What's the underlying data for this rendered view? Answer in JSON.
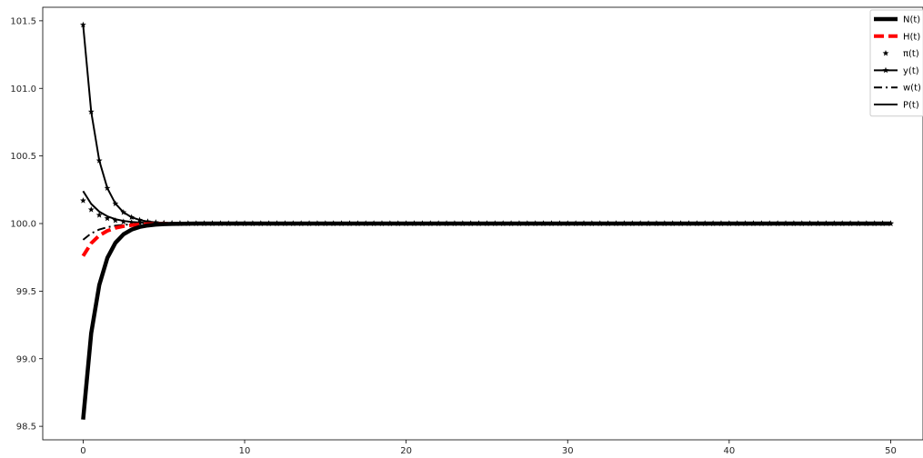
{
  "chart_data": {
    "type": "line",
    "title": "",
    "xlabel": "",
    "ylabel": "",
    "xlim": [
      -2.5,
      52.0
    ],
    "ylim": [
      98.4,
      101.6
    ],
    "grid": false,
    "legend_position": "top-right",
    "x_ticks": [
      0,
      10,
      20,
      30,
      40,
      50
    ],
    "x_tick_labels": [
      "0",
      "10",
      "20",
      "30",
      "40",
      "50"
    ],
    "y_ticks": [
      98.5,
      99.0,
      99.5,
      100.0,
      100.5,
      101.0,
      101.5
    ],
    "y_tick_labels": [
      "98.5",
      "99.0",
      "99.5",
      "100.0",
      "100.5",
      "101.0",
      "101.5"
    ],
    "x_start": 0,
    "x_end": 50,
    "x_step": 0.5,
    "series": [
      {
        "name": "N(t)",
        "style": "thick-solid",
        "color": "#000000",
        "initial_value": 98.55,
        "steady_value": 100.0,
        "decay_per_unit_t": 1.16
      },
      {
        "name": "H(t)",
        "style": "dashed",
        "color": "#ff0000",
        "initial_value": 99.76,
        "steady_value": 100.0,
        "decay_per_unit_t": 1.0
      },
      {
        "name": "π(t)",
        "style": "star-markers",
        "color": "#000000",
        "initial_value": 100.17,
        "steady_value": 100.0,
        "decay_per_unit_t": 1.0
      },
      {
        "name": "y(t)",
        "style": "solid-star-markers",
        "color": "#000000",
        "initial_value": 101.47,
        "steady_value": 100.0,
        "decay_per_unit_t": 1.15
      },
      {
        "name": "w(t)",
        "style": "dash-dot",
        "color": "#000000",
        "initial_value": 99.88,
        "steady_value": 100.0,
        "decay_per_unit_t": 1.0
      },
      {
        "name": "P(t)",
        "style": "solid",
        "color": "#000000",
        "initial_value": 100.24,
        "steady_value": 100.0,
        "decay_per_unit_t": 1.0
      }
    ]
  }
}
